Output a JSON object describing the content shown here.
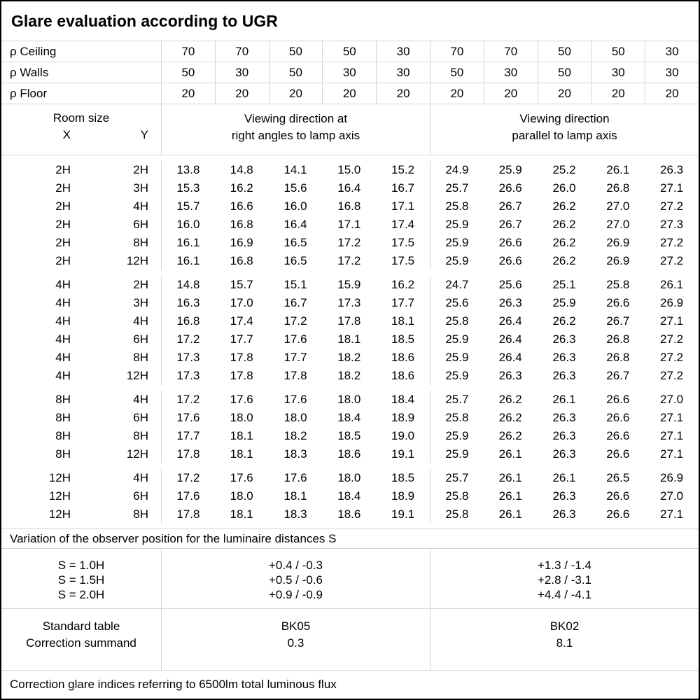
{
  "title": "Glare evaluation according to UGR",
  "colors": {
    "background": "#ffffff",
    "text": "#000000",
    "outer_border": "#000000",
    "grid_line": "#d4d4d4"
  },
  "reflectance_rows": [
    {
      "label": "ρ Ceiling",
      "values": [
        "70",
        "70",
        "50",
        "50",
        "30",
        "70",
        "70",
        "50",
        "50",
        "30"
      ]
    },
    {
      "label": "ρ Walls",
      "values": [
        "50",
        "30",
        "50",
        "30",
        "30",
        "50",
        "30",
        "50",
        "30",
        "30"
      ]
    },
    {
      "label": "ρ Floor",
      "values": [
        "20",
        "20",
        "20",
        "20",
        "20",
        "20",
        "20",
        "20",
        "20",
        "20"
      ]
    }
  ],
  "header": {
    "room_size_label": "Room size",
    "x_label": "X",
    "y_label": "Y",
    "left_group_line1": "Viewing direction at",
    "left_group_line2": "right angles to lamp axis",
    "right_group_line1": "Viewing direction",
    "right_group_line2": "parallel to lamp axis"
  },
  "body_groups": [
    {
      "rows": [
        {
          "x": "2H",
          "y": "2H",
          "values": [
            "13.8",
            "14.8",
            "14.1",
            "15.0",
            "15.2",
            "24.9",
            "25.9",
            "25.2",
            "26.1",
            "26.3"
          ]
        },
        {
          "x": "2H",
          "y": "3H",
          "values": [
            "15.3",
            "16.2",
            "15.6",
            "16.4",
            "16.7",
            "25.7",
            "26.6",
            "26.0",
            "26.8",
            "27.1"
          ]
        },
        {
          "x": "2H",
          "y": "4H",
          "values": [
            "15.7",
            "16.6",
            "16.0",
            "16.8",
            "17.1",
            "25.8",
            "26.7",
            "26.2",
            "27.0",
            "27.2"
          ]
        },
        {
          "x": "2H",
          "y": "6H",
          "values": [
            "16.0",
            "16.8",
            "16.4",
            "17.1",
            "17.4",
            "25.9",
            "26.7",
            "26.2",
            "27.0",
            "27.3"
          ]
        },
        {
          "x": "2H",
          "y": "8H",
          "values": [
            "16.1",
            "16.9",
            "16.5",
            "17.2",
            "17.5",
            "25.9",
            "26.6",
            "26.2",
            "26.9",
            "27.2"
          ]
        },
        {
          "x": "2H",
          "y": "12H",
          "values": [
            "16.1",
            "16.8",
            "16.5",
            "17.2",
            "17.5",
            "25.9",
            "26.6",
            "26.2",
            "26.9",
            "27.2"
          ]
        }
      ]
    },
    {
      "rows": [
        {
          "x": "4H",
          "y": "2H",
          "values": [
            "14.8",
            "15.7",
            "15.1",
            "15.9",
            "16.2",
            "24.7",
            "25.6",
            "25.1",
            "25.8",
            "26.1"
          ]
        },
        {
          "x": "4H",
          "y": "3H",
          "values": [
            "16.3",
            "17.0",
            "16.7",
            "17.3",
            "17.7",
            "25.6",
            "26.3",
            "25.9",
            "26.6",
            "26.9"
          ]
        },
        {
          "x": "4H",
          "y": "4H",
          "values": [
            "16.8",
            "17.4",
            "17.2",
            "17.8",
            "18.1",
            "25.8",
            "26.4",
            "26.2",
            "26.7",
            "27.1"
          ]
        },
        {
          "x": "4H",
          "y": "6H",
          "values": [
            "17.2",
            "17.7",
            "17.6",
            "18.1",
            "18.5",
            "25.9",
            "26.4",
            "26.3",
            "26.8",
            "27.2"
          ]
        },
        {
          "x": "4H",
          "y": "8H",
          "values": [
            "17.3",
            "17.8",
            "17.7",
            "18.2",
            "18.6",
            "25.9",
            "26.4",
            "26.3",
            "26.8",
            "27.2"
          ]
        },
        {
          "x": "4H",
          "y": "12H",
          "values": [
            "17.3",
            "17.8",
            "17.8",
            "18.2",
            "18.6",
            "25.9",
            "26.3",
            "26.3",
            "26.7",
            "27.2"
          ]
        }
      ]
    },
    {
      "rows": [
        {
          "x": "8H",
          "y": "4H",
          "values": [
            "17.2",
            "17.6",
            "17.6",
            "18.0",
            "18.4",
            "25.7",
            "26.2",
            "26.1",
            "26.6",
            "27.0"
          ]
        },
        {
          "x": "8H",
          "y": "6H",
          "values": [
            "17.6",
            "18.0",
            "18.0",
            "18.4",
            "18.9",
            "25.8",
            "26.2",
            "26.3",
            "26.6",
            "27.1"
          ]
        },
        {
          "x": "8H",
          "y": "8H",
          "values": [
            "17.7",
            "18.1",
            "18.2",
            "18.5",
            "19.0",
            "25.9",
            "26.2",
            "26.3",
            "26.6",
            "27.1"
          ]
        },
        {
          "x": "8H",
          "y": "12H",
          "values": [
            "17.8",
            "18.1",
            "18.3",
            "18.6",
            "19.1",
            "25.9",
            "26.1",
            "26.3",
            "26.6",
            "27.1"
          ]
        }
      ]
    },
    {
      "rows": [
        {
          "x": "12H",
          "y": "4H",
          "values": [
            "17.2",
            "17.6",
            "17.6",
            "18.0",
            "18.5",
            "25.7",
            "26.1",
            "26.1",
            "26.5",
            "26.9"
          ]
        },
        {
          "x": "12H",
          "y": "6H",
          "values": [
            "17.6",
            "18.0",
            "18.1",
            "18.4",
            "18.9",
            "25.8",
            "26.1",
            "26.3",
            "26.6",
            "27.0"
          ]
        },
        {
          "x": "12H",
          "y": "8H",
          "values": [
            "17.8",
            "18.1",
            "18.3",
            "18.6",
            "19.1",
            "25.8",
            "26.1",
            "26.3",
            "26.6",
            "27.1"
          ]
        }
      ]
    }
  ],
  "variation_note": "Variation of the observer position for the luminaire distances S",
  "spacing_rows": [
    {
      "label": "S = 1.0H",
      "left": "+0.4 / -0.3",
      "right": "+1.3 / -1.4"
    },
    {
      "label": "S = 1.5H",
      "left": "+0.5 / -0.6",
      "right": "+2.8 / -3.1"
    },
    {
      "label": "S = 2.0H",
      "left": "+0.9 / -0.9",
      "right": "+4.4 / -4.1"
    }
  ],
  "summary": {
    "standard_table_label": "Standard table",
    "correction_summand_label": "Correction summand",
    "standard_table_left": "BK05",
    "standard_table_right": "BK02",
    "correction_summand_left": "0.3",
    "correction_summand_right": "8.1"
  },
  "footer_note": "Correction glare indices referring to 6500lm total luminous flux"
}
